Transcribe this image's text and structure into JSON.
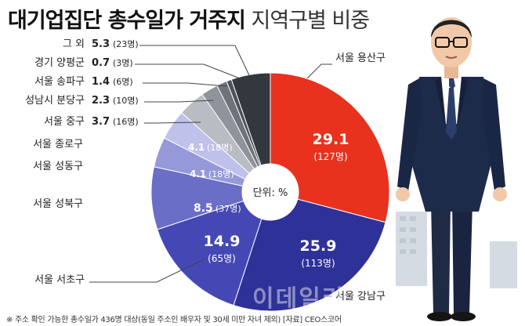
{
  "title": {
    "bold": "대기업집단 총수일가 거주지",
    "light": "지역구별 비중"
  },
  "center_label": "단위: %",
  "watermark": "이데일리",
  "footnote": "※ 주소 확인 가능한 총수일가 436명 대상(동일 주소인 배우자 및 30세 미만 자녀 제외)  [자료] CEO스코어",
  "colors": {
    "seoul_yongsan": "#e8321e",
    "seoul_gangnam": "#2e3197",
    "seoul_seocho": "#4548b4",
    "seoul_seongbuk": "#6a6ec6",
    "seoul_seongdong": "#9699d8",
    "seoul_jongno": "#bfc1ea",
    "seoul_junggu": "#b9bcc3",
    "seongnam_bundang": "#8f939b",
    "seoul_songpa": "#6e7279",
    "gyeonggi_yangpyeong": "#4e5259",
    "others": "#33373e"
  },
  "chart_data": {
    "type": "pie",
    "title": "대기업집단 총수일가 거주지 지역구별 비중",
    "unit": "단위: %",
    "slices": [
      {
        "label": "서울 용산구",
        "value": 29.1,
        "count": "(127명)",
        "color_key": "seoul_yongsan"
      },
      {
        "label": "서울 강남구",
        "value": 25.9,
        "count": "(113명)",
        "color_key": "seoul_gangnam"
      },
      {
        "label": "서울 서초구",
        "value": 14.9,
        "count": "(65명)",
        "color_key": "seoul_seocho"
      },
      {
        "label": "서울 성북구",
        "value": 8.5,
        "count": "(37명)",
        "color_key": "seoul_seongbuk"
      },
      {
        "label": "서울 성동구",
        "value": 4.1,
        "count": "(18명)",
        "color_key": "seoul_seongdong"
      },
      {
        "label": "서울 종로구",
        "value": 4.1,
        "count": "(18명)",
        "color_key": "seoul_jongno"
      },
      {
        "label": "서울 중구",
        "value": 3.7,
        "count": "(16명)",
        "color_key": "seoul_junggu"
      },
      {
        "label": "성남시 분당구",
        "value": 2.3,
        "count": "(10명)",
        "color_key": "seongnam_bundang"
      },
      {
        "label": "서울 송파구",
        "value": 1.4,
        "count": "(6명)",
        "color_key": "seoul_songpa"
      },
      {
        "label": "경기 양평군",
        "value": 0.7,
        "count": "(3명)",
        "color_key": "gyeonggi_yangpyeong"
      },
      {
        "label": "그 외",
        "value": 5.3,
        "count": "(23명)",
        "color_key": "others"
      }
    ]
  }
}
